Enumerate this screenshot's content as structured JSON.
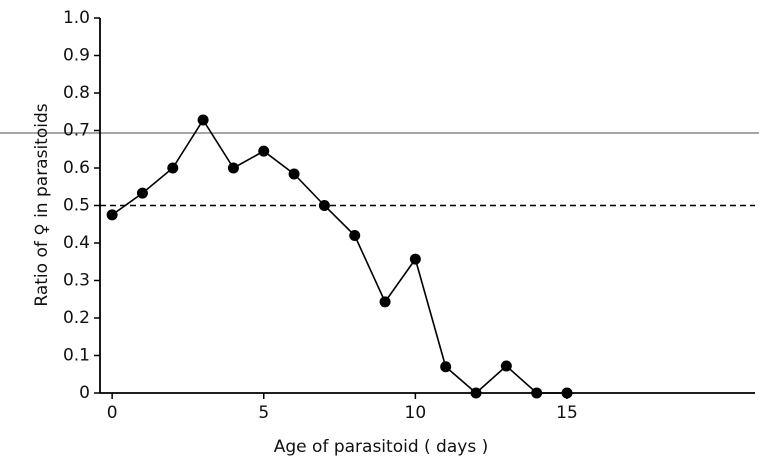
{
  "chart_data": {
    "type": "line",
    "x_label": "Age of parasitoid  ( days )",
    "y_label": "Ratio of ♀ in parasitoids",
    "x": [
      0,
      1,
      2,
      3,
      4,
      5,
      6,
      7,
      8,
      9,
      10,
      11,
      12,
      13,
      14,
      15
    ],
    "values": [
      0.475,
      0.533,
      0.6,
      0.728,
      0.6,
      0.645,
      0.584,
      0.5,
      0.42,
      0.243,
      0.357,
      0.07,
      0,
      0.072,
      0,
      0
    ],
    "color": "#000000",
    "reference_line": 0.5,
    "xlim": [
      -0.4,
      21.2
    ],
    "xticks": [
      0,
      5,
      10,
      15
    ],
    "ylim": [
      0,
      1
    ],
    "yticks": [
      0,
      0.1,
      0.2,
      0.3,
      0.4,
      0.5,
      0.6,
      0.7,
      0.8,
      0.9,
      {
        "value": 1,
        "label": "1.0"
      }
    ]
  }
}
